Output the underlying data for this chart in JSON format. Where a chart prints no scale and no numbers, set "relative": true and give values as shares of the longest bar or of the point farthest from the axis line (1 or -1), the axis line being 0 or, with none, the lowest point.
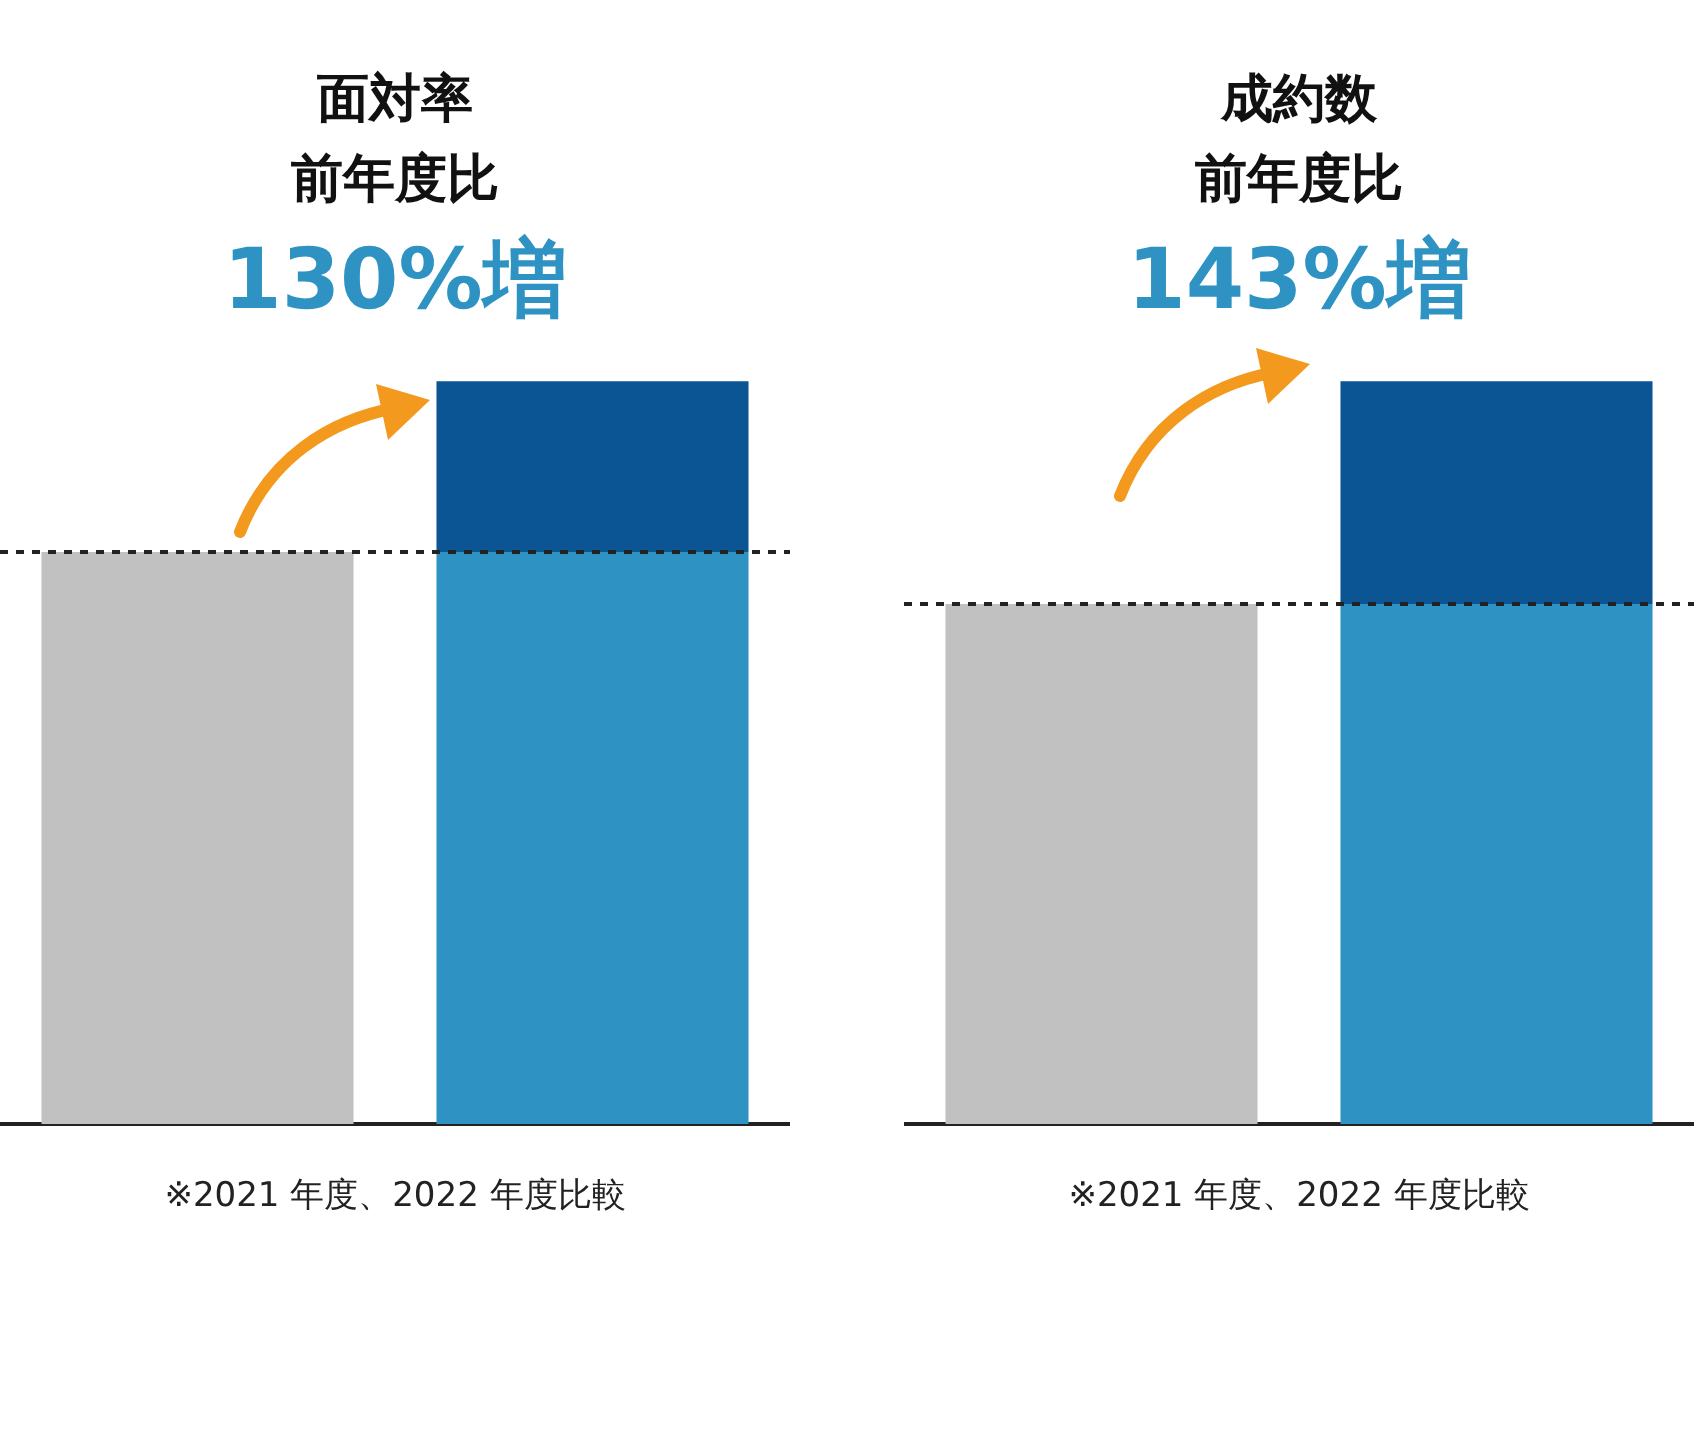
{
  "chart_data": [
    {
      "type": "bar",
      "title": "面対率",
      "subtitle": "前年度比",
      "categories": [
        null,
        null
      ],
      "relative": true,
      "stacked": true,
      "legend": false,
      "grid": false,
      "series": [
        {
          "colors": [
            "#c1c1c1",
            "#2e93c3"
          ],
          "values": [
            0.77,
            0.77
          ]
        },
        {
          "color": "#0b5595",
          "values": [
            null,
            0.23
          ]
        }
      ],
      "ref_lines": [
        {
          "axis": "y",
          "value": 0.77,
          "line_style": "dotted",
          "color": "#222222"
        }
      ],
      "annotations": [
        "130%増",
        "※2021 年度、2022 年度比較"
      ]
    },
    {
      "type": "bar",
      "title": "成約数",
      "subtitle": "前年度比",
      "categories": [
        null,
        null
      ],
      "relative": true,
      "stacked": true,
      "legend": false,
      "grid": false,
      "series": [
        {
          "colors": [
            "#c1c1c1",
            "#2e93c3"
          ],
          "values": [
            0.7,
            0.7
          ]
        },
        {
          "color": "#0b5595",
          "values": [
            null,
            0.3
          ]
        }
      ],
      "ref_lines": [
        {
          "axis": "y",
          "value": 0.7,
          "line_style": "dotted",
          "color": "#222222"
        }
      ],
      "annotations": [
        "143%増",
        "※2021 年度、2022 年度比較"
      ]
    }
  ]
}
